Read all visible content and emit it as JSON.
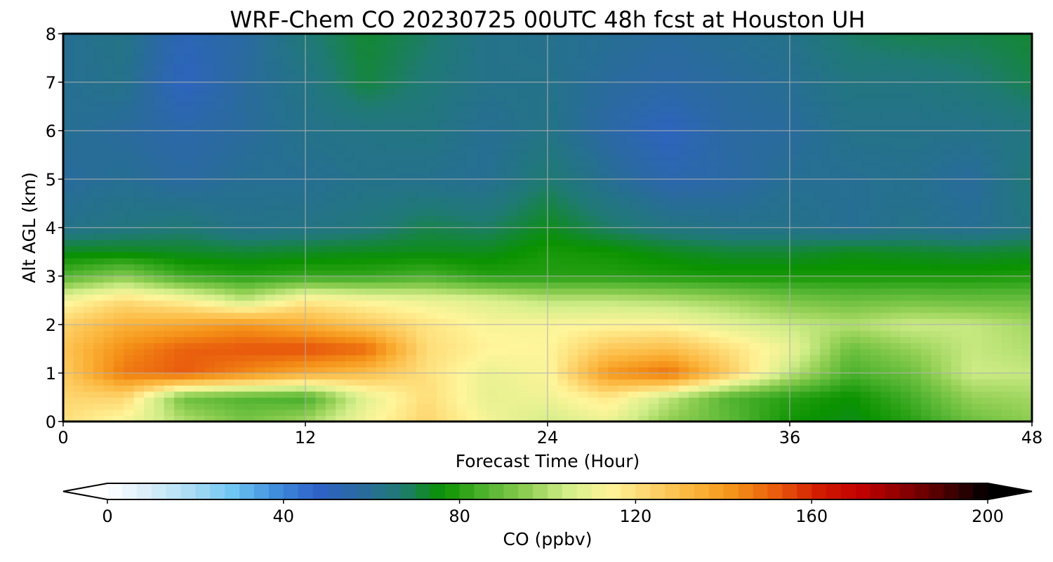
{
  "chart_data": {
    "type": "heatmap",
    "title": "WRF-Chem CO  20230725 00UTC 48h fcst at Houston UH",
    "xlabel": "Forecast Time (Hour)",
    "ylabel": "Alt AGL (km)",
    "xlim": [
      0,
      48
    ],
    "ylim": [
      0,
      8
    ],
    "xticks": [
      "0",
      "12",
      "24",
      "36",
      "48"
    ],
    "yticks": [
      "0",
      "1",
      "2",
      "3",
      "4",
      "5",
      "6",
      "7",
      "8"
    ],
    "grid": true,
    "colorbar": {
      "label": "CO  (ppbv)",
      "range": [
        0,
        200
      ],
      "ticks": [
        "0",
        "40",
        "80",
        "120",
        "160",
        "200"
      ],
      "extend": "both",
      "colors": [
        "#ffffff",
        "#d8eef9",
        "#a9dcf5",
        "#6fc5f2",
        "#3f8fdc",
        "#2e62c8",
        "#2a6aa0",
        "#1f7a74",
        "#0a9200",
        "#4fb32f",
        "#8fce52",
        "#d3ee8a",
        "#fff59a",
        "#fdd269",
        "#fbb43a",
        "#f48f16",
        "#e8590c",
        "#d11a00",
        "#c00000",
        "#8a0000",
        "#4a0000",
        "#000000"
      ]
    },
    "x_hours": [
      0,
      3,
      6,
      9,
      12,
      15,
      18,
      21,
      24,
      27,
      30,
      33,
      36,
      39,
      42,
      45,
      48
    ],
    "alt_km": [
      0,
      0.5,
      1,
      1.5,
      2,
      2.5,
      3,
      3.5,
      4,
      5,
      6,
      7,
      8
    ],
    "co_ppbv": [
      [
        120,
        112,
        100,
        92,
        98,
        112,
        123,
        112,
        105,
        110,
        95,
        88,
        77,
        74,
        80,
        90,
        95
      ],
      [
        123,
        123,
        90,
        86,
        84,
        108,
        121,
        109,
        111,
        118,
        102,
        86,
        80,
        76,
        84,
        96,
        98
      ],
      [
        126,
        147,
        152,
        144,
        136,
        130,
        120,
        110,
        113,
        141,
        149,
        126,
        102,
        85,
        90,
        104,
        103
      ],
      [
        128,
        143,
        151,
        153,
        154,
        150,
        121,
        115,
        114,
        127,
        130,
        120,
        110,
        90,
        96,
        103,
        100
      ],
      [
        124,
        134,
        137,
        141,
        135,
        127,
        119,
        113,
        113,
        114,
        114,
        108,
        103,
        100,
        104,
        103,
        98
      ],
      [
        112,
        121,
        115,
        103,
        117,
        113,
        110,
        107,
        102,
        102,
        100,
        97,
        92,
        90,
        91,
        90,
        90
      ],
      [
        86,
        94,
        83,
        80,
        82,
        82,
        85,
        80,
        80,
        80,
        79,
        78,
        78,
        78,
        78,
        78,
        79
      ],
      [
        74,
        74,
        73,
        72,
        73,
        74,
        74,
        74,
        78,
        77,
        74,
        72,
        72,
        74,
        73,
        72,
        73
      ],
      [
        62,
        64,
        66,
        62,
        63,
        65,
        70,
        68,
        74,
        68,
        64,
        62,
        62,
        60,
        62,
        60,
        64
      ],
      [
        58,
        60,
        57,
        60,
        60,
        62,
        61,
        60,
        67,
        60,
        54,
        56,
        60,
        60,
        61,
        58,
        66
      ],
      [
        60,
        58,
        55,
        58,
        62,
        63,
        64,
        60,
        63,
        56,
        50,
        57,
        58,
        62,
        62,
        62,
        64
      ],
      [
        60,
        62,
        50,
        58,
        63,
        71,
        66,
        62,
        62,
        58,
        56,
        58,
        60,
        64,
        64,
        66,
        70
      ],
      [
        60,
        63,
        52,
        57,
        66,
        72,
        68,
        62,
        61,
        60,
        58,
        60,
        62,
        68,
        70,
        70,
        72
      ]
    ]
  }
}
